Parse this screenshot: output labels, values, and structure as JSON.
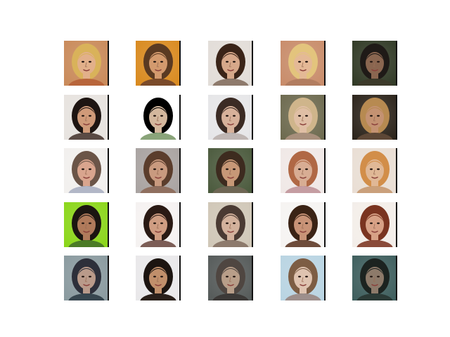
{
  "figure": {
    "background": "#ffffff",
    "rows": 5,
    "cols": 5
  },
  "tiles": [
    {
      "bg": "#c98a5a",
      "skin": "#e2b08a",
      "hair": "#d9b25a",
      "cloth": "#b8653b"
    },
    {
      "bg": "#d98a1f",
      "skin": "#d39a6e",
      "hair": "#5a3a22",
      "cloth": "#7a4a2a"
    },
    {
      "bg": "#e2ddd8",
      "skin": "#d6a88a",
      "hair": "#3a2418",
      "cloth": "#8e7a6c"
    },
    {
      "bg": "#c88c6a",
      "skin": "#e4b996",
      "hair": "#e3c47d",
      "cloth": "#b27d60"
    },
    {
      "bg": "#313a26",
      "skin": "#8a6650",
      "hair": "#1f1a17",
      "cloth": "#3c3a2a"
    },
    {
      "bg": "#e7e3df",
      "skin": "#cf9a79",
      "hair": "#1e1512",
      "cloth": "#5a4a44"
    },
    {
      "bg": "#ffffff",
      "skin": "#d3b79d",
      "hair": "#000000",
      "cloth": "#8aa47a"
    },
    {
      "bg": "#e6e6e8",
      "skin": "#d7b19a",
      "hair": "#3b2b24",
      "cloth": "#bfb6b3"
    },
    {
      "bg": "#6d6a4f",
      "skin": "#e0bfa5",
      "hair": "#cfb58b",
      "cloth": "#a88f7c"
    },
    {
      "bg": "#2c241b",
      "skin": "#c49272",
      "hair": "#b78a51",
      "cloth": "#5d4736"
    },
    {
      "bg": "#f2f0ee",
      "skin": "#d9a58e",
      "hair": "#6b5548",
      "cloth": "#b2b7c7"
    },
    {
      "bg": "#a9a3a1",
      "skin": "#c99a7f",
      "hair": "#5b3d2c",
      "cloth": "#8f6f5f"
    },
    {
      "bg": "#4b5a3d",
      "skin": "#c79877",
      "hair": "#3d2b1f",
      "cloth": "#6e6654"
    },
    {
      "bg": "#f0e8e6",
      "skin": "#d8ad94",
      "hair": "#b06845",
      "cloth": "#c59da2"
    },
    {
      "bg": "#e9ded4",
      "skin": "#e0b896",
      "hair": "#d28e49",
      "cloth": "#caa07b"
    },
    {
      "bg": "#8bd61a",
      "skin": "#b07a5b",
      "hair": "#1b1511",
      "cloth": "#4b7b26"
    },
    {
      "bg": "#f5f2f1",
      "skin": "#cf9d82",
      "hair": "#2a1a14",
      "cloth": "#7c5d56"
    },
    {
      "bg": "#d0c7b7",
      "skin": "#d2b19c",
      "hair": "#4a3a33",
      "cloth": "#8d7a6c"
    },
    {
      "bg": "#f6f4f2",
      "skin": "#c89377",
      "hair": "#3b2315",
      "cloth": "#6e4c3b"
    },
    {
      "bg": "#f3eee9",
      "skin": "#d7a186",
      "hair": "#7a3420",
      "cloth": "#8a4b3a"
    },
    {
      "bg": "#8a9a9f",
      "skin": "#b99a8a",
      "hair": "#2d2f3a",
      "cloth": "#37464f"
    },
    {
      "bg": "#e9e8ea",
      "skin": "#c08f6b",
      "hair": "#1c1511",
      "cloth": "#2a201b"
    },
    {
      "bg": "#555a59",
      "skin": "#b89e89",
      "hair": "#4f4641",
      "cloth": "#3c3937"
    },
    {
      "bg": "#b9d4e2",
      "skin": "#dfc3b0",
      "hair": "#7d5d44",
      "cloth": "#9d8f8c"
    },
    {
      "bg": "#3e5e5d",
      "skin": "#8d7a6a",
      "hair": "#1c2320",
      "cloth": "#2b3a36"
    }
  ]
}
